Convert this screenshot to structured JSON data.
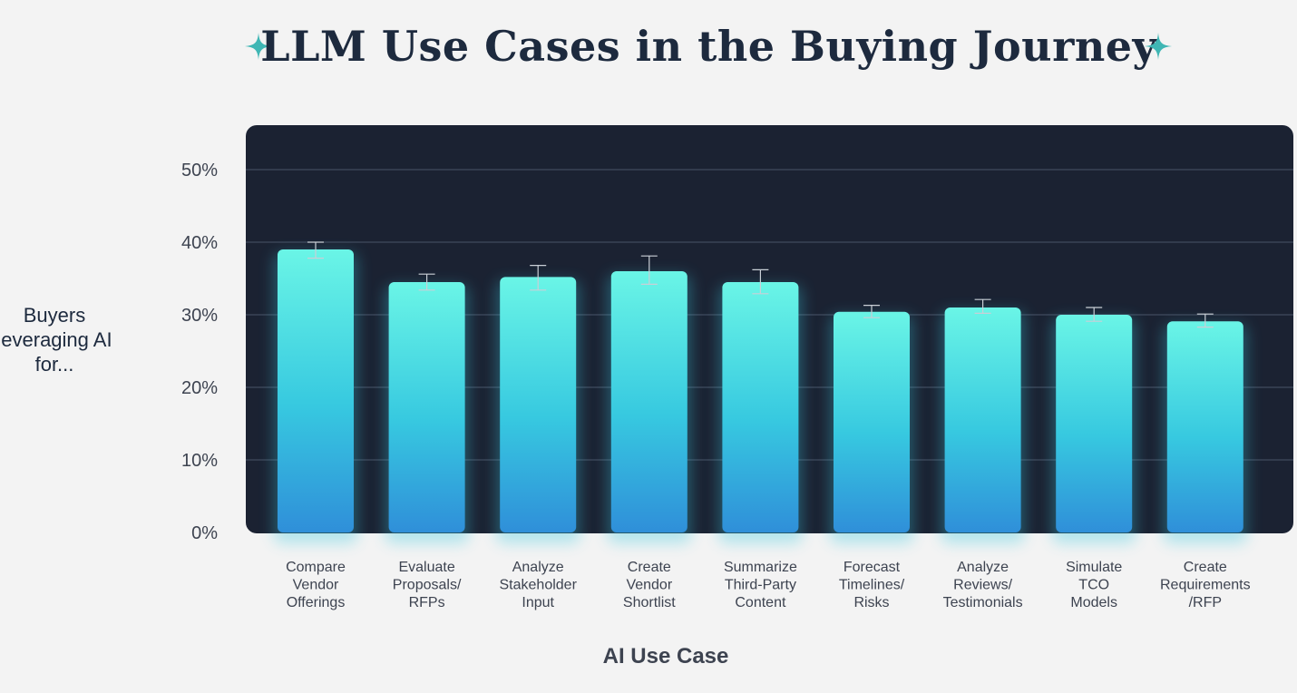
{
  "page": {
    "title": "LLM Use Cases in the Buying Journey",
    "y_axis_label_lines": [
      "Buyers",
      "leveraging AI",
      "for..."
    ],
    "x_axis_label": "AI Use Case",
    "accent_color": "#3fb6b4",
    "panel_color": "#1b2232"
  },
  "chart_data": {
    "type": "bar",
    "title": "LLM Use Cases in the Buying Journey",
    "xlabel": "AI Use Case",
    "ylabel": "Buyers leveraging AI for...",
    "ylim": [
      0,
      50
    ],
    "yticks": [
      0,
      10,
      20,
      30,
      40,
      50
    ],
    "ytick_labels": [
      "0%",
      "10%",
      "20%",
      "30%",
      "40%",
      "50%"
    ],
    "grid": true,
    "categories": [
      [
        "Compare",
        "Vendor",
        "Offerings"
      ],
      [
        "Evaluate",
        "Proposals/",
        "RFPs"
      ],
      [
        "Analyze",
        "Stakeholder",
        "Input"
      ],
      [
        "Create",
        "Vendor",
        "Shortlist"
      ],
      [
        "Summarize",
        "Third-Party",
        "Content"
      ],
      [
        "Forecast",
        "Timelines/",
        "Risks"
      ],
      [
        "Analyze",
        "Reviews/",
        "Testimonials"
      ],
      [
        "Simulate",
        "TCO",
        "Models"
      ],
      [
        "Create",
        "Requirements",
        "/RFP"
      ]
    ],
    "values": [
      39,
      34.5,
      35.2,
      36,
      34.5,
      30.4,
      31,
      30,
      29.1
    ],
    "error_low": [
      37.8,
      33.4,
      33.4,
      34.2,
      32.9,
      29.6,
      30.2,
      29.1,
      28.3
    ],
    "error_high": [
      40,
      35.6,
      36.8,
      38.1,
      36.2,
      31.3,
      32.1,
      31,
      30.1
    ],
    "bar_gradient": [
      "#6af5e6",
      "#37c9e0",
      "#2f8fd9"
    ]
  }
}
